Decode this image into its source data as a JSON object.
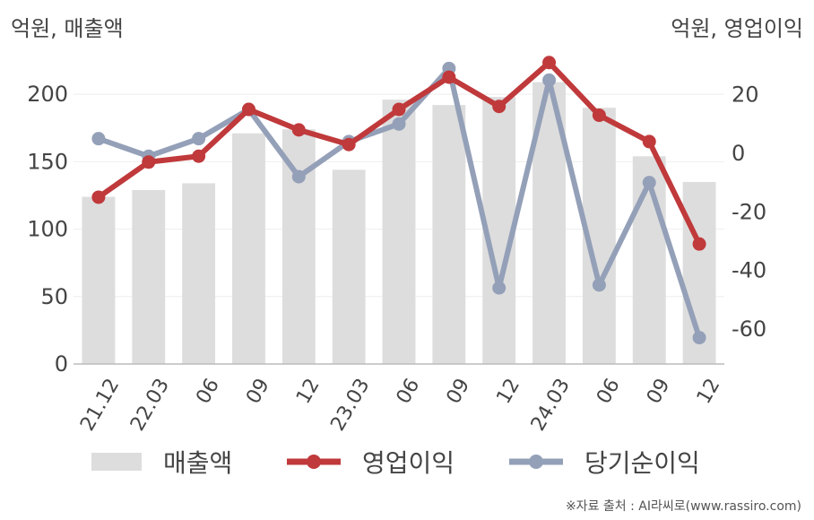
{
  "chart_data": {
    "type": "bar+line",
    "left_axis_label": "억원, 매출액",
    "right_axis_label": "억원, 영업이익",
    "categories": [
      "21.12",
      "22.03",
      "06",
      "09",
      "12",
      "23.03",
      "06",
      "09",
      "12",
      "24.03",
      "06",
      "09",
      "12"
    ],
    "left_axis": {
      "ylim": [
        0,
        230
      ],
      "ticks": [
        "0",
        "50",
        "100",
        "150",
        "200"
      ]
    },
    "right_axis": {
      "ylim": [
        -72,
        34
      ],
      "ticks": [
        "-60",
        "-40",
        "-20",
        "0",
        "20"
      ]
    },
    "series": [
      {
        "name": "매출액",
        "type": "bar",
        "axis": "left",
        "color": "#dddddd",
        "values": [
          124,
          129,
          134,
          171,
          174,
          144,
          196,
          192,
          198,
          209,
          190,
          154,
          135
        ]
      },
      {
        "name": "영업이익",
        "type": "line",
        "axis": "right",
        "color": "#c0393b",
        "values": [
          -15,
          -3,
          -1,
          15,
          8,
          3,
          15,
          26,
          16,
          31,
          13,
          4,
          -31
        ]
      },
      {
        "name": "당기순이익",
        "type": "line",
        "axis": "right",
        "color": "#94a0b8",
        "values": [
          5,
          -1,
          5,
          15,
          -8,
          4,
          10,
          29,
          -46,
          25,
          -45,
          -10,
          -63
        ]
      }
    ],
    "grid": true,
    "legend_position": "bottom"
  },
  "source_note": "※자료 출처 : AI라씨로(www.rassiro.com)"
}
